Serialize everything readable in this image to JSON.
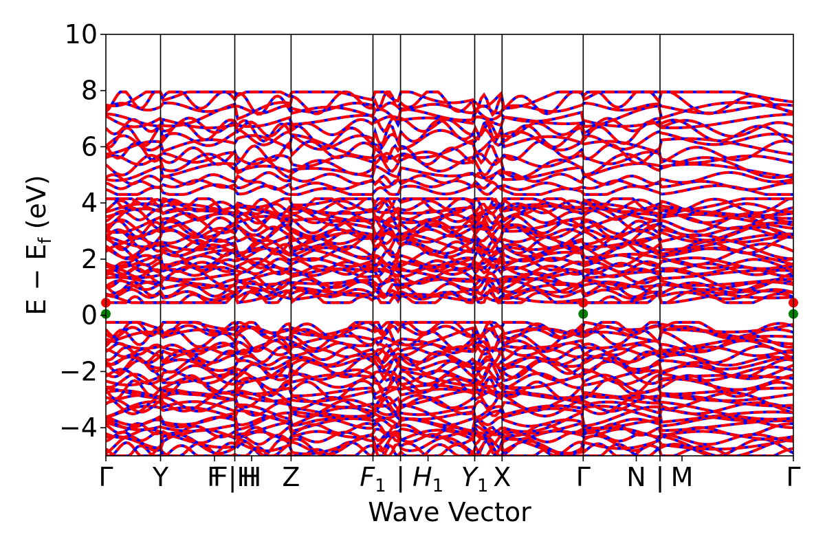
{
  "chart_data": {
    "type": "line",
    "ylabel_parts": {
      "main": "E − E",
      "sub": "f",
      "unit": " (eV)"
    },
    "ylabel": "E − Ef (eV)",
    "xlabel": "Wave Vector",
    "ylim": [
      -5,
      10
    ],
    "xlim": [
      0,
      1
    ],
    "yticks": [
      -4,
      -2,
      0,
      2,
      4,
      6,
      8,
      10
    ],
    "ytick_labels": [
      "−4",
      "−2",
      "0",
      "2",
      "4",
      "6",
      "8",
      "10"
    ],
    "kpoint_lines": [
      0.0795,
      0.1875,
      0.2694,
      0.3885,
      0.4286,
      0.5365,
      0.5763,
      0.6943,
      0.806
    ],
    "kpoint_labels": [
      {
        "label": "Γ",
        "x": 0.0,
        "sub": ""
      },
      {
        "label": "Y",
        "x": 0.0795,
        "sub": ""
      },
      {
        "label": "F",
        "x": 0.158,
        "sub": ""
      },
      {
        "label": "F|H",
        "x": 0.1875,
        "sub": ""
      },
      {
        "label": "H",
        "x": 0.212,
        "sub": ""
      },
      {
        "label": "Z",
        "x": 0.2694,
        "sub": ""
      },
      {
        "label": "F",
        "x": 0.3885,
        "sub": "1",
        "italic": true
      },
      {
        "label": "|",
        "x": 0.4286,
        "sub": ""
      },
      {
        "label": "H",
        "x": 0.4686,
        "sub": "1",
        "italic": true
      },
      {
        "label": "Y",
        "x": 0.5365,
        "sub": "1",
        "italic": true
      },
      {
        "label": "X",
        "x": 0.5763,
        "sub": ""
      },
      {
        "label": "Γ",
        "x": 0.6943,
        "sub": ""
      },
      {
        "label": "N",
        "x": 0.7715,
        "sub": ""
      },
      {
        "label": "|",
        "x": 0.806,
        "sub": ""
      },
      {
        "label": "M",
        "x": 0.838,
        "sub": ""
      },
      {
        "label": "Γ",
        "x": 1.0,
        "sub": ""
      }
    ],
    "series": [
      {
        "color": "#0000ff",
        "style": "solid"
      },
      {
        "color": "#ff0000",
        "style": "dashed"
      }
    ],
    "band_groups": [
      {
        "min": -5.0,
        "max": -0.25,
        "count": 34
      },
      {
        "min": 0.45,
        "max": 4.15,
        "count": 32
      },
      {
        "min": 4.3,
        "max": 7.95,
        "count": 16
      }
    ],
    "markers": [
      {
        "x": 0.0,
        "y": 0.45,
        "color": "#ff0000"
      },
      {
        "x": 0.6943,
        "y": 0.45,
        "color": "#ff0000"
      },
      {
        "x": 1.0,
        "y": 0.45,
        "color": "#ff0000"
      },
      {
        "x": 0.0,
        "y": 0.05,
        "color": "#008000"
      },
      {
        "x": 0.6943,
        "y": 0.05,
        "color": "#008000"
      },
      {
        "x": 1.0,
        "y": 0.05,
        "color": "#008000"
      }
    ]
  }
}
